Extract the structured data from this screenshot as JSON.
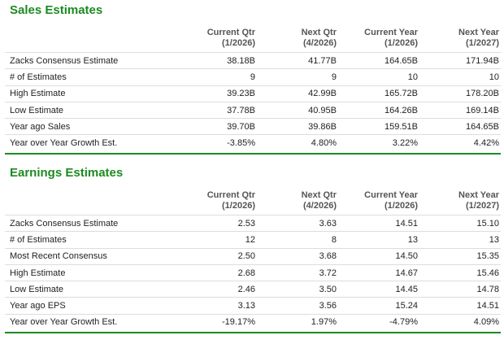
{
  "sections": [
    {
      "title": "Sales Estimates",
      "columns": [
        {
          "name": "Current Qtr",
          "period": "(1/2026)"
        },
        {
          "name": "Next Qtr",
          "period": "(4/2026)"
        },
        {
          "name": "Current Year",
          "period": "(1/2026)"
        },
        {
          "name": "Next Year",
          "period": "(1/2027)"
        }
      ],
      "rows": [
        [
          "Zacks Consensus Estimate",
          "38.18B",
          "41.77B",
          "164.65B",
          "171.94B"
        ],
        [
          "# of Estimates",
          "9",
          "9",
          "10",
          "10"
        ],
        [
          "High Estimate",
          "39.23B",
          "42.99B",
          "165.72B",
          "178.20B"
        ],
        [
          "Low Estimate",
          "37.78B",
          "40.95B",
          "164.26B",
          "169.14B"
        ],
        [
          "Year ago Sales",
          "39.70B",
          "39.86B",
          "159.51B",
          "164.65B"
        ],
        [
          "Year over Year Growth Est.",
          "-3.85%",
          "4.80%",
          "3.22%",
          "4.42%"
        ]
      ]
    },
    {
      "title": "Earnings Estimates",
      "columns": [
        {
          "name": "Current Qtr",
          "period": "(1/2026)"
        },
        {
          "name": "Next Qtr",
          "period": "(4/2026)"
        },
        {
          "name": "Current Year",
          "period": "(1/2026)"
        },
        {
          "name": "Next Year",
          "period": "(1/2027)"
        }
      ],
      "rows": [
        [
          "Zacks Consensus Estimate",
          "2.53",
          "3.63",
          "14.51",
          "15.10"
        ],
        [
          "# of Estimates",
          "12",
          "8",
          "13",
          "13"
        ],
        [
          "Most Recent Consensus",
          "2.50",
          "3.68",
          "14.50",
          "15.35"
        ],
        [
          "High Estimate",
          "2.68",
          "3.72",
          "14.67",
          "15.46"
        ],
        [
          "Low Estimate",
          "2.46",
          "3.50",
          "14.45",
          "14.78"
        ],
        [
          "Year ago EPS",
          "3.13",
          "3.56",
          "15.24",
          "14.51"
        ],
        [
          "Year over Year Growth Est.",
          "-19.17%",
          "1.97%",
          "-4.79%",
          "4.09%"
        ]
      ]
    }
  ]
}
